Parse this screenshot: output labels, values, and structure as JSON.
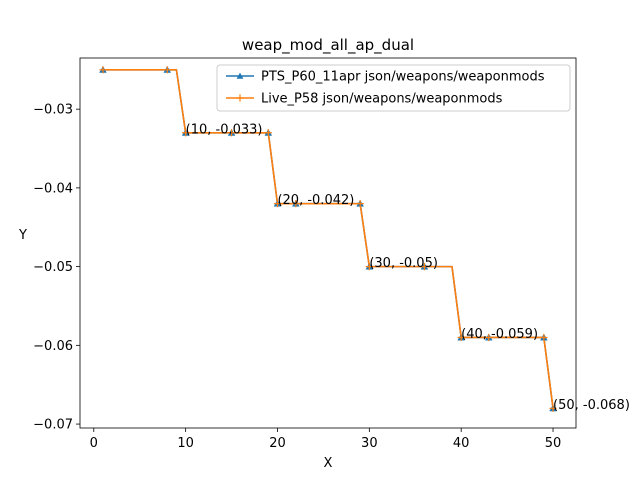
{
  "chart_data": {
    "type": "line",
    "title": "weap_mod_all_ap_dual",
    "xlabel": "X",
    "ylabel": "Y",
    "xlim": [
      -1.5,
      52.5
    ],
    "ylim": [
      -0.0705,
      -0.0235
    ],
    "xticks": [
      0,
      10,
      20,
      30,
      40,
      50
    ],
    "yticks": [
      -0.03,
      -0.04,
      -0.05,
      -0.06,
      -0.07
    ],
    "ytick_labels": [
      "−0.03",
      "−0.04",
      "−0.05",
      "−0.06",
      "−0.07"
    ],
    "legend_location": "top-right",
    "grid": false,
    "series": [
      {
        "name": "PTS_P60_11apr json/weapons/weaponmods",
        "color": "#1f77b4",
        "marker": "triangle",
        "x": [
          1,
          8,
          9,
          10,
          15,
          19,
          20,
          22,
          29,
          30,
          36,
          39,
          40,
          43,
          49,
          50
        ],
        "y": [
          -0.025,
          -0.025,
          -0.025,
          -0.033,
          -0.033,
          -0.033,
          -0.042,
          -0.042,
          -0.042,
          -0.05,
          -0.05,
          -0.05,
          -0.059,
          -0.059,
          -0.059,
          -0.068
        ],
        "marker_x": [
          1,
          8,
          10,
          15,
          19,
          20,
          22,
          29,
          30,
          36,
          40,
          43,
          49,
          50
        ],
        "marker_y": [
          -0.025,
          -0.025,
          -0.033,
          -0.033,
          -0.033,
          -0.042,
          -0.042,
          -0.042,
          -0.05,
          -0.05,
          -0.059,
          -0.059,
          -0.059,
          -0.068
        ]
      },
      {
        "name": "Live_P58 json/weapons/weaponmods",
        "color": "#ff7f0e",
        "marker": "plus",
        "x": [
          1,
          8,
          9,
          10,
          15,
          19,
          20,
          22,
          29,
          30,
          36,
          39,
          40,
          43,
          49,
          50
        ],
        "y": [
          -0.025,
          -0.025,
          -0.025,
          -0.033,
          -0.033,
          -0.033,
          -0.042,
          -0.042,
          -0.042,
          -0.05,
          -0.05,
          -0.05,
          -0.059,
          -0.059,
          -0.059,
          -0.068
        ],
        "marker_x": [
          1,
          8,
          10,
          15,
          19,
          20,
          22,
          29,
          30,
          36,
          40,
          43,
          49,
          50
        ],
        "marker_y": [
          -0.025,
          -0.025,
          -0.033,
          -0.033,
          -0.033,
          -0.042,
          -0.042,
          -0.042,
          -0.05,
          -0.05,
          -0.059,
          -0.059,
          -0.059,
          -0.068
        ]
      }
    ],
    "annotations": [
      {
        "x": 10,
        "y": -0.033,
        "text": "(10, -0.033)"
      },
      {
        "x": 20,
        "y": -0.042,
        "text": "(20, -0.042)"
      },
      {
        "x": 30,
        "y": -0.05,
        "text": "(30, -0.05)"
      },
      {
        "x": 40,
        "y": -0.059,
        "text": "(40, -0.059)"
      },
      {
        "x": 50,
        "y": -0.068,
        "text": "(50, -0.068)"
      }
    ]
  }
}
